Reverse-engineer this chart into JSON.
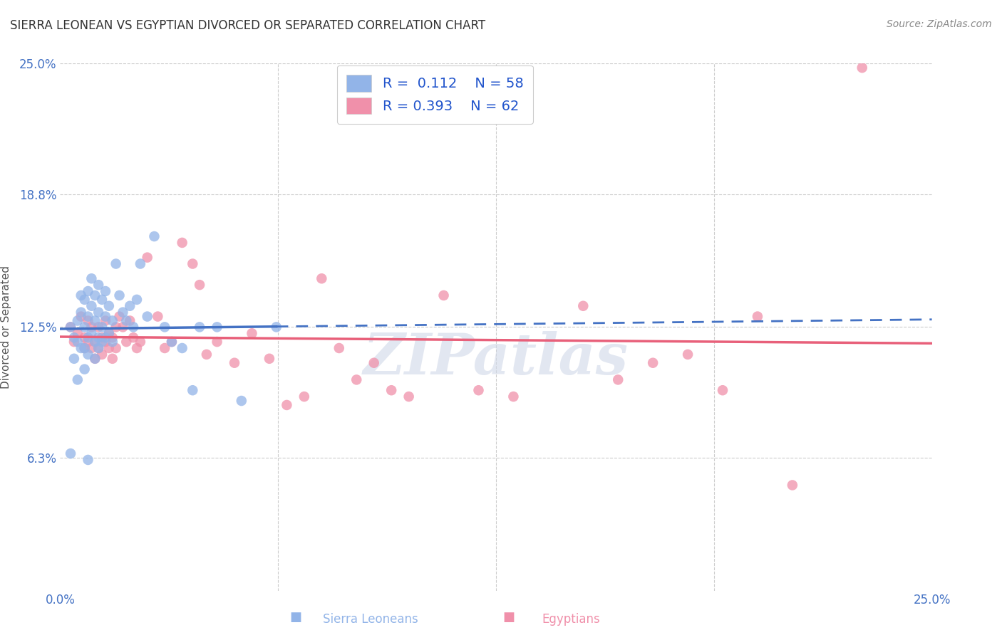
{
  "title": "SIERRA LEONEAN VS EGYPTIAN DIVORCED OR SEPARATED CORRELATION CHART",
  "source": "Source: ZipAtlas.com",
  "ylabel": "Divorced or Separated",
  "xlim": [
    0.0,
    0.25
  ],
  "ylim": [
    0.0,
    0.25
  ],
  "ytick_positions": [
    0.063,
    0.125,
    0.188,
    0.25
  ],
  "ytick_labels": [
    "6.3%",
    "12.5%",
    "18.8%",
    "25.0%"
  ],
  "legend_R1": "0.112",
  "legend_N1": "58",
  "legend_R2": "0.393",
  "legend_N2": "62",
  "color_blue": "#92b4e8",
  "color_pink": "#f090aa",
  "line_blue": "#4472c4",
  "line_pink": "#e8607a",
  "background_color": "#ffffff",
  "grid_color": "#cccccc",
  "watermark": "ZIPatlas",
  "sierra_x": [
    0.003,
    0.004,
    0.005,
    0.005,
    0.006,
    0.006,
    0.007,
    0.007,
    0.007,
    0.008,
    0.008,
    0.008,
    0.008,
    0.009,
    0.009,
    0.009,
    0.01,
    0.01,
    0.01,
    0.01,
    0.011,
    0.011,
    0.011,
    0.011,
    0.012,
    0.012,
    0.012,
    0.013,
    0.013,
    0.013,
    0.014,
    0.014,
    0.015,
    0.015,
    0.016,
    0.017,
    0.018,
    0.019,
    0.02,
    0.021,
    0.022,
    0.023,
    0.025,
    0.027,
    0.03,
    0.032,
    0.035,
    0.038,
    0.04,
    0.045,
    0.052,
    0.062,
    0.003,
    0.004,
    0.005,
    0.006,
    0.007,
    0.008
  ],
  "sierra_y": [
    0.125,
    0.12,
    0.128,
    0.118,
    0.14,
    0.132,
    0.138,
    0.125,
    0.115,
    0.142,
    0.13,
    0.12,
    0.112,
    0.148,
    0.135,
    0.122,
    0.14,
    0.128,
    0.118,
    0.11,
    0.145,
    0.132,
    0.12,
    0.115,
    0.138,
    0.125,
    0.118,
    0.142,
    0.13,
    0.12,
    0.135,
    0.122,
    0.128,
    0.118,
    0.155,
    0.14,
    0.132,
    0.128,
    0.135,
    0.125,
    0.138,
    0.155,
    0.13,
    0.168,
    0.125,
    0.118,
    0.115,
    0.095,
    0.125,
    0.125,
    0.09,
    0.125,
    0.065,
    0.11,
    0.1,
    0.115,
    0.105,
    0.062
  ],
  "egypt_x": [
    0.003,
    0.004,
    0.005,
    0.006,
    0.007,
    0.007,
    0.008,
    0.008,
    0.009,
    0.009,
    0.01,
    0.01,
    0.011,
    0.011,
    0.012,
    0.012,
    0.013,
    0.013,
    0.014,
    0.014,
    0.015,
    0.015,
    0.016,
    0.016,
    0.017,
    0.018,
    0.019,
    0.02,
    0.021,
    0.022,
    0.023,
    0.025,
    0.028,
    0.03,
    0.032,
    0.035,
    0.038,
    0.04,
    0.042,
    0.045,
    0.05,
    0.055,
    0.06,
    0.065,
    0.07,
    0.075,
    0.08,
    0.085,
    0.09,
    0.095,
    0.1,
    0.11,
    0.12,
    0.13,
    0.15,
    0.16,
    0.17,
    0.18,
    0.19,
    0.2,
    0.21,
    0.23
  ],
  "egypt_y": [
    0.125,
    0.118,
    0.122,
    0.13,
    0.12,
    0.115,
    0.128,
    0.118,
    0.125,
    0.115,
    0.118,
    0.11,
    0.125,
    0.115,
    0.12,
    0.112,
    0.128,
    0.118,
    0.122,
    0.115,
    0.12,
    0.11,
    0.125,
    0.115,
    0.13,
    0.125,
    0.118,
    0.128,
    0.12,
    0.115,
    0.118,
    0.158,
    0.13,
    0.115,
    0.118,
    0.165,
    0.155,
    0.145,
    0.112,
    0.118,
    0.108,
    0.122,
    0.11,
    0.088,
    0.092,
    0.148,
    0.115,
    0.1,
    0.108,
    0.095,
    0.092,
    0.14,
    0.095,
    0.092,
    0.135,
    0.1,
    0.108,
    0.112,
    0.095,
    0.13,
    0.05,
    0.248
  ]
}
